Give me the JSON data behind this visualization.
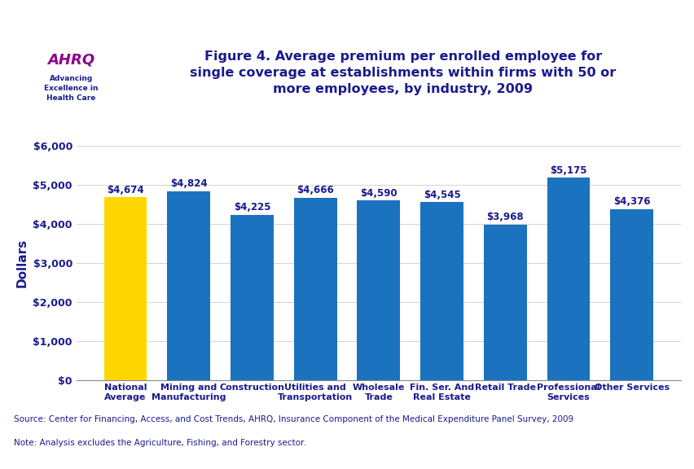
{
  "title": "Figure 4. Average premium per enrolled employee for\nsingle coverage at establishments within firms with 50 or\nmore employees, by industry, 2009",
  "ylabel": "Dollars",
  "categories": [
    "National\nAverage",
    "Mining and\nManufacturing",
    "Construction",
    "Utilities and\nTransportation",
    "Wholesale\nTrade",
    "Fin. Ser. And\nReal Estate",
    "Retail Trade",
    "Professional\nServices",
    "Other Services"
  ],
  "values": [
    4674,
    4824,
    4225,
    4666,
    4590,
    4545,
    3968,
    5175,
    4376
  ],
  "bar_colors": [
    "#FFD700",
    "#1B72BE",
    "#1B72BE",
    "#1B72BE",
    "#1B72BE",
    "#1B72BE",
    "#1B72BE",
    "#1B72BE",
    "#1B72BE"
  ],
  "bar_labels": [
    "$4,674",
    "$4,824",
    "$4,225",
    "$4,666",
    "$4,590",
    "$4,545",
    "$3,968",
    "$5,175",
    "$4,376"
  ],
  "ylim": [
    0,
    6000
  ],
  "yticks": [
    0,
    1000,
    2000,
    3000,
    4000,
    5000,
    6000
  ],
  "ytick_labels": [
    "$0",
    "$1,000",
    "$2,000",
    "$3,000",
    "$4,000",
    "$5,000",
    "$6,000"
  ],
  "source_text": "Source: Center for Financing, Access, and Cost Trends, AHRQ, Insurance Component of the Medical Expenditure Panel Survey, 2009",
  "note_text": "Note: Analysis excludes the Agriculture, Fishing, and Forestry sector.",
  "title_color": "#1A1A8C",
  "bar_label_color": "#1A1A8C",
  "ylabel_color": "#1A1A8C",
  "ytick_color": "#1A1A8C",
  "xtick_color": "#1A1A8C",
  "source_color": "#1A1A8C",
  "top_border_color": "#1A1A8C",
  "bottom_border_color": "#1A1A8C",
  "background_color": "#FFFFFF",
  "logo_bg_color": "#1B72BE",
  "header_bg_color": "#FFFFFF",
  "divider_color": "#1A1A8C"
}
